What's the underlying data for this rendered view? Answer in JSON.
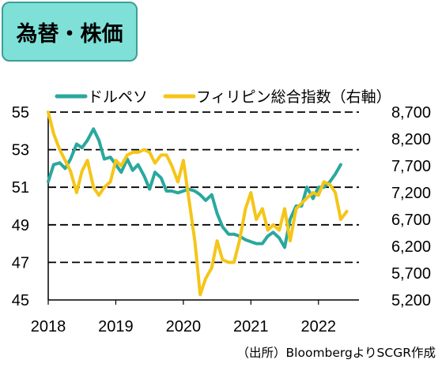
{
  "title": "為替・株価",
  "source": "（出所）BloombergよりSCGR作成",
  "chart_data": {
    "type": "line",
    "legend_position": "top",
    "x_ticks": [
      "2018",
      "2019",
      "2020",
      "2021",
      "2022"
    ],
    "x_range": [
      2018,
      2022.6
    ],
    "y_left": {
      "ticks": [
        "55",
        "53",
        "51",
        "49",
        "47",
        "45"
      ],
      "range": [
        45,
        55
      ]
    },
    "y_right": {
      "ticks": [
        "8,700",
        "8,200",
        "7,700",
        "7,200",
        "6,700",
        "6,200",
        "5,700",
        "5,200"
      ],
      "range": [
        5200,
        8700
      ]
    },
    "grid": {
      "dashed_at_left_values": [
        55,
        53,
        51,
        49,
        47
      ]
    },
    "colors": {
      "usdphp": "#2aa89e",
      "psei": "#f5c518",
      "title_bg": "#7fe0d8",
      "title_border": "#3c9e95"
    },
    "series": [
      {
        "name": "ドルペソ",
        "axis": "left",
        "x": [
          2018.0,
          2018.08,
          2018.17,
          2018.25,
          2018.33,
          2018.42,
          2018.5,
          2018.58,
          2018.67,
          2018.75,
          2018.83,
          2018.92,
          2019.0,
          2019.08,
          2019.17,
          2019.25,
          2019.33,
          2019.42,
          2019.5,
          2019.58,
          2019.67,
          2019.75,
          2019.83,
          2019.92,
          2020.0,
          2020.08,
          2020.17,
          2020.25,
          2020.33,
          2020.42,
          2020.5,
          2020.58,
          2020.67,
          2020.75,
          2020.83,
          2020.92,
          2021.0,
          2021.08,
          2021.17,
          2021.25,
          2021.33,
          2021.42,
          2021.5,
          2021.58,
          2021.67,
          2021.75,
          2021.83,
          2021.92,
          2022.0,
          2022.08,
          2022.17,
          2022.25,
          2022.33
        ],
        "values": [
          51.3,
          52.2,
          52.3,
          52.0,
          52.5,
          53.3,
          53.1,
          53.5,
          54.1,
          53.5,
          52.5,
          52.6,
          52.2,
          51.8,
          52.5,
          51.9,
          52.2,
          51.6,
          50.9,
          51.8,
          51.5,
          50.8,
          50.8,
          50.7,
          50.8,
          50.9,
          50.8,
          50.6,
          50.3,
          50.6,
          49.6,
          48.9,
          48.5,
          48.5,
          48.4,
          48.2,
          48.1,
          48.0,
          48.0,
          48.4,
          48.6,
          48.3,
          47.8,
          49.3,
          50.0,
          50.0,
          51.0,
          50.4,
          51.0,
          51.0,
          51.3,
          51.7,
          52.2
        ]
      },
      {
        "name": "フィリピン総合指数（右軸）",
        "axis": "right",
        "x": [
          2018.0,
          2018.08,
          2018.17,
          2018.25,
          2018.33,
          2018.42,
          2018.5,
          2018.58,
          2018.67,
          2018.75,
          2018.83,
          2018.92,
          2019.0,
          2019.08,
          2019.17,
          2019.25,
          2019.33,
          2019.42,
          2019.5,
          2019.58,
          2019.67,
          2019.75,
          2019.83,
          2019.92,
          2020.0,
          2020.08,
          2020.17,
          2020.25,
          2020.33,
          2020.42,
          2020.5,
          2020.58,
          2020.67,
          2020.75,
          2020.83,
          2020.92,
          2021.0,
          2021.08,
          2021.17,
          2021.25,
          2021.33,
          2021.42,
          2021.5,
          2021.58,
          2021.67,
          2021.75,
          2021.83,
          2021.92,
          2022.0,
          2022.08,
          2022.17,
          2022.25,
          2022.33,
          2022.42
        ],
        "values": [
          8700,
          8300,
          8000,
          7800,
          7600,
          7200,
          7600,
          7800,
          7300,
          7150,
          7300,
          7400,
          7800,
          7700,
          7900,
          7950,
          7950,
          8000,
          7950,
          7750,
          7900,
          7900,
          7700,
          7400,
          7800,
          7100,
          6300,
          5300,
          5600,
          5800,
          6300,
          5950,
          5900,
          5900,
          6300,
          6900,
          7200,
          6700,
          6900,
          6500,
          6600,
          6500,
          6900,
          6300,
          6900,
          7000,
          7100,
          7200,
          7150,
          7400,
          7350,
          7200,
          6700,
          6850
        ]
      }
    ]
  }
}
